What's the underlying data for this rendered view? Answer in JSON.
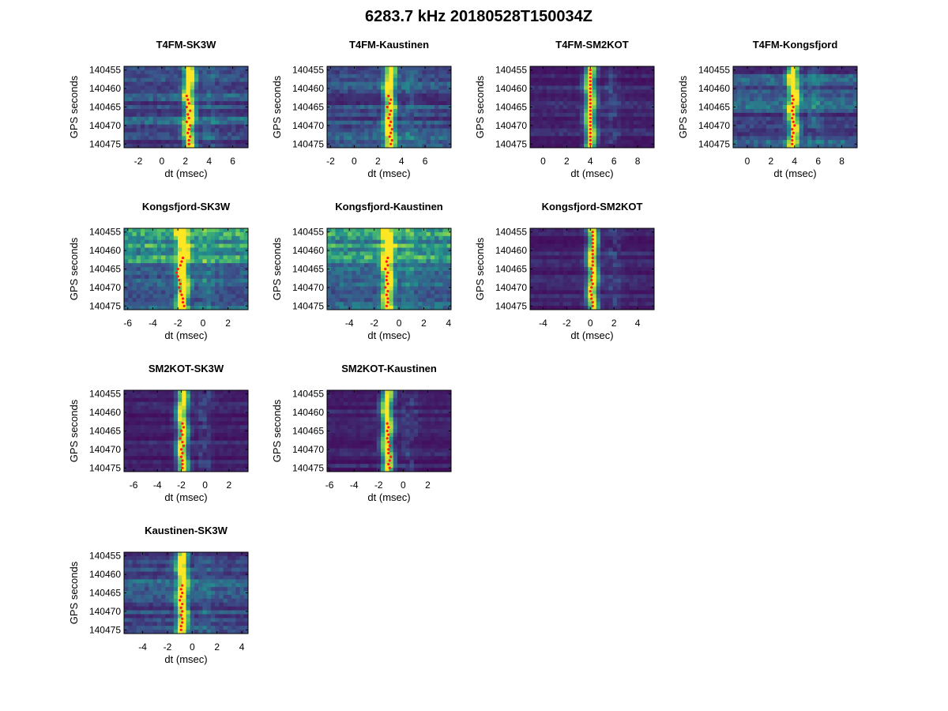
{
  "figure_title": "6283.7 kHz 20180528T150034Z",
  "chart_data": [
    {
      "type": "heatmap",
      "title": "T4FM-SK3W",
      "xlabel": "dt (msec)",
      "ylabel": "GPS seconds",
      "xlim": [
        -3.2,
        7.3
      ],
      "ylim": [
        140454,
        140476
      ],
      "xticks": [
        -2,
        0,
        2,
        4,
        6
      ],
      "yticks": [
        140455,
        140460,
        140465,
        140470,
        140475
      ],
      "peak_dt": 2.3,
      "background": "mixed",
      "markers": {
        "gps": [
          140462,
          140463,
          140464,
          140465,
          140466,
          140467,
          140468,
          140469,
          140470,
          140471,
          140472,
          140473,
          140474,
          140475
        ],
        "dt": [
          2.1,
          2.2,
          2.3,
          2.1,
          2.4,
          2.2,
          2.3,
          2.1,
          2.4,
          2.3,
          2.2,
          2.4,
          2.3,
          2.3
        ]
      }
    },
    {
      "type": "heatmap",
      "title": "T4FM-Kaustinen",
      "xlabel": "dt (msec)",
      "ylabel": "GPS seconds",
      "xlim": [
        -2.3,
        8.2
      ],
      "ylim": [
        140454,
        140476
      ],
      "xticks": [
        -2,
        0,
        2,
        4,
        6
      ],
      "yticks": [
        140455,
        140460,
        140465,
        140470,
        140475
      ],
      "peak_dt": 3.0,
      "background": "mixed",
      "markers": {
        "gps": [
          140462,
          140463,
          140464,
          140465,
          140466,
          140467,
          140468,
          140469,
          140470,
          140471,
          140472,
          140473,
          140474,
          140475
        ],
        "dt": [
          2.9,
          3.1,
          3.0,
          2.8,
          3.1,
          3.0,
          2.9,
          3.1,
          3.0,
          3.2,
          3.1,
          3.0,
          3.2,
          3.1
        ]
      }
    },
    {
      "type": "heatmap",
      "title": "T4FM-SM2KOT",
      "xlabel": "dt (msec)",
      "ylabel": "GPS seconds",
      "xlim": [
        -1.1,
        9.4
      ],
      "ylim": [
        140454,
        140476
      ],
      "xticks": [
        0,
        2,
        4,
        6,
        8
      ],
      "yticks": [
        140455,
        140460,
        140465,
        140470,
        140475
      ],
      "peak_dt": 4.0,
      "background": "dark",
      "markers": {
        "gps": [
          140455,
          140456,
          140457,
          140458,
          140459,
          140460,
          140461,
          140462,
          140463,
          140464,
          140465,
          140466,
          140467,
          140468,
          140469,
          140470,
          140471,
          140472,
          140473,
          140474,
          140475
        ],
        "dt": [
          4.0,
          4.0,
          4.0,
          4.0,
          4.0,
          4.0,
          4.0,
          4.0,
          4.0,
          4.0,
          4.0,
          4.0,
          4.0,
          4.0,
          4.0,
          4.0,
          4.0,
          4.0,
          4.0,
          4.0,
          4.0
        ]
      }
    },
    {
      "type": "heatmap",
      "title": "T4FM-Kongsfjord",
      "xlabel": "dt (msec)",
      "ylabel": "GPS seconds",
      "xlim": [
        -1.2,
        9.3
      ],
      "ylim": [
        140454,
        140476
      ],
      "xticks": [
        0,
        2,
        4,
        6,
        8
      ],
      "yticks": [
        140455,
        140460,
        140465,
        140470,
        140475
      ],
      "peak_dt": 3.9,
      "background": "mixed",
      "markers": {
        "gps": [
          140462,
          140463,
          140464,
          140465,
          140466,
          140467,
          140468,
          140469,
          140470,
          140471,
          140472,
          140473,
          140474,
          140475
        ],
        "dt": [
          3.8,
          3.9,
          3.8,
          3.9,
          3.8,
          3.9,
          3.8,
          3.9,
          4.0,
          3.8,
          3.9,
          3.8,
          3.8,
          3.8
        ]
      }
    },
    {
      "type": "heatmap",
      "title": "Kongsfjord-SK3W",
      "xlabel": "dt (msec)",
      "ylabel": "GPS seconds",
      "xlim": [
        -6.3,
        3.6
      ],
      "ylim": [
        140454,
        140476
      ],
      "xticks": [
        -6,
        -4,
        -2,
        0,
        2
      ],
      "yticks": [
        140455,
        140460,
        140465,
        140470,
        140475
      ],
      "peak_dt": -1.6,
      "background": "bright",
      "markers": {
        "gps": [
          140462,
          140463,
          140464,
          140465,
          140466,
          140467,
          140468,
          140469,
          140470,
          140471,
          140472,
          140473,
          140474,
          140475
        ],
        "dt": [
          -1.6,
          -1.7,
          -1.8,
          -2.0,
          -2.1,
          -2.0,
          -1.9,
          -1.8,
          -1.9,
          -1.8,
          -1.7,
          -1.6,
          -1.6,
          -1.5
        ]
      }
    },
    {
      "type": "heatmap",
      "title": "Kongsfjord-Kaustinen",
      "xlabel": "dt (msec)",
      "ylabel": "GPS seconds",
      "xlim": [
        -5.8,
        4.2
      ],
      "ylim": [
        140454,
        140476
      ],
      "xticks": [
        -4,
        -2,
        0,
        2,
        4
      ],
      "yticks": [
        140455,
        140460,
        140465,
        140470,
        140475
      ],
      "peak_dt": -0.9,
      "background": "bright",
      "markers": {
        "gps": [
          140462,
          140463,
          140464,
          140465,
          140466,
          140467,
          140468,
          140469,
          140470,
          140471,
          140472,
          140473,
          140474,
          140475
        ],
        "dt": [
          -0.9,
          -1.0,
          -0.9,
          -1.1,
          -0.9,
          -1.0,
          -1.0,
          -0.9,
          -1.1,
          -0.9,
          -1.0,
          -0.9,
          -0.9,
          -1.0
        ]
      }
    },
    {
      "type": "heatmap",
      "title": "Kongsfjord-SM2KOT",
      "xlabel": "dt (msec)",
      "ylabel": "GPS seconds",
      "xlim": [
        -5.1,
        5.4
      ],
      "ylim": [
        140454,
        140476
      ],
      "xticks": [
        -4,
        -2,
        0,
        2,
        4
      ],
      "yticks": [
        140455,
        140460,
        140465,
        140470,
        140475
      ],
      "peak_dt": 0.2,
      "background": "dark",
      "markers": {
        "gps": [
          140455,
          140456,
          140457,
          140458,
          140459,
          140460,
          140461,
          140462,
          140463,
          140464,
          140465,
          140466,
          140467,
          140468,
          140469,
          140470,
          140471,
          140472,
          140473,
          140474,
          140475
        ],
        "dt": [
          0.2,
          0.2,
          0.2,
          0.2,
          0.2,
          0.2,
          0.2,
          0.2,
          0.2,
          0.2,
          0.1,
          0.2,
          0.1,
          0.1,
          0.2,
          0.1,
          0.0,
          0.1,
          0.1,
          0.2,
          0.2
        ]
      }
    },
    {
      "type": "heatmap",
      "title": "SM2KOT-SK3W",
      "xlabel": "dt (msec)",
      "ylabel": "GPS seconds",
      "xlim": [
        -6.8,
        3.6
      ],
      "ylim": [
        140454,
        140476
      ],
      "xticks": [
        -6,
        -4,
        -2,
        0,
        2
      ],
      "yticks": [
        140455,
        140460,
        140465,
        140470,
        140475
      ],
      "peak_dt": -1.9,
      "background": "dark",
      "markers": {
        "gps": [
          140463,
          140464,
          140465,
          140466,
          140467,
          140468,
          140469,
          140470,
          140471,
          140472,
          140473,
          140474,
          140475
        ],
        "dt": [
          -1.9,
          -1.8,
          -2.0,
          -1.9,
          -2.1,
          -1.9,
          -1.8,
          -2.0,
          -1.9,
          -2.0,
          -1.9,
          -1.9,
          -1.9
        ]
      }
    },
    {
      "type": "heatmap",
      "title": "SM2KOT-Kaustinen",
      "xlabel": "dt (msec)",
      "ylabel": "GPS seconds",
      "xlim": [
        -6.2,
        3.9
      ],
      "ylim": [
        140454,
        140476
      ],
      "xticks": [
        -6,
        -4,
        -2,
        0,
        2
      ],
      "yticks": [
        140455,
        140460,
        140465,
        140470,
        140475
      ],
      "peak_dt": -1.3,
      "background": "dark",
      "markers": {
        "gps": [
          140463,
          140464,
          140465,
          140466,
          140467,
          140468,
          140469,
          140470,
          140471,
          140472,
          140473,
          140474,
          140475
        ],
        "dt": [
          -1.3,
          -1.2,
          -1.3,
          -1.2,
          -1.3,
          -1.2,
          -1.1,
          -1.2,
          -1.2,
          -1.0,
          -1.1,
          -1.2,
          -1.1
        ]
      }
    },
    {
      "type": "heatmap",
      "title": "Kaustinen-SK3W",
      "xlabel": "dt (msec)",
      "ylabel": "GPS seconds",
      "xlim": [
        -5.5,
        4.5
      ],
      "ylim": [
        140454,
        140476
      ],
      "xticks": [
        -4,
        -2,
        0,
        2,
        4
      ],
      "yticks": [
        140455,
        140460,
        140465,
        140470,
        140475
      ],
      "peak_dt": -0.8,
      "background": "mixed",
      "markers": {
        "gps": [
          140463,
          140464,
          140465,
          140466,
          140467,
          140468,
          140469,
          140470,
          140471,
          140472,
          140473,
          140474,
          140475
        ],
        "dt": [
          -0.8,
          -0.9,
          -0.8,
          -0.9,
          -1.0,
          -0.8,
          -0.9,
          -0.8,
          -0.9,
          -0.8,
          -0.8,
          -0.9,
          -0.9
        ]
      }
    }
  ]
}
